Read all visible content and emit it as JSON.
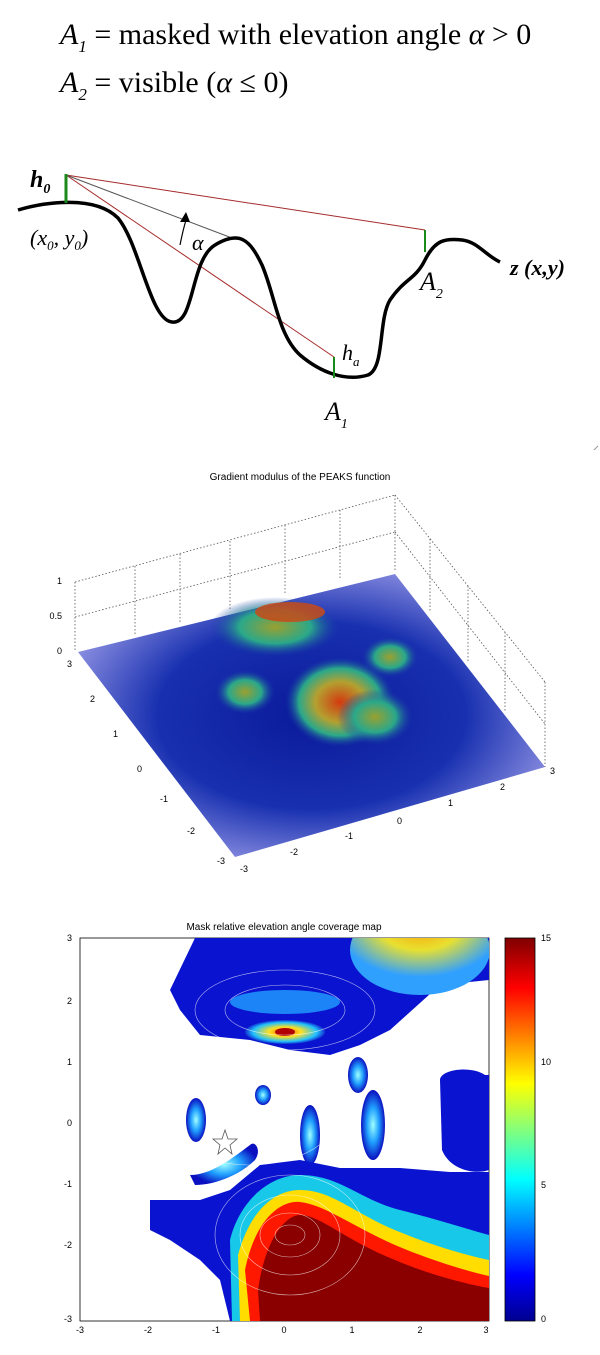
{
  "equations": {
    "line1": {
      "var": "A",
      "sub": "1",
      "text": " = masked with elevation angle ",
      "greek": "α",
      "rel": " > 0"
    },
    "line2": {
      "var": "A",
      "sub": "2",
      "text": " = visible (",
      "greek": "α",
      "rel": " ≤ 0)"
    }
  },
  "diagram": {
    "h0": "h",
    "h0_sub": "0",
    "point_open": "(x",
    "point_sub0": "0",
    "point_mid": ", y",
    "point_sub1": "0",
    "point_close": ")",
    "alpha": "α",
    "a2": "A",
    "a2_sub": "2",
    "ha": "h",
    "ha_sub": "a",
    "a1": "A",
    "a1_sub": "1",
    "surface": "z (x,y)",
    "colors": {
      "terrain": "#000000",
      "ray_red": "#a52a2a",
      "ray_gray": "#555555",
      "height": "#1a8a1a"
    }
  },
  "chart3d": {
    "title": "Gradient modulus of the PEAKS function",
    "z_ticks": [
      "0",
      "0.5",
      "1"
    ],
    "y_ticks": [
      "3",
      "2",
      "1",
      "0",
      "-1",
      "-2",
      "-3"
    ],
    "x_ticks": [
      "-3",
      "-2",
      "-1",
      "0",
      "1",
      "2",
      "3"
    ]
  },
  "chart_data": {
    "type": "heatmap",
    "title": "Mask relative elevation angle coverage map",
    "x_ticks": [
      "-3",
      "-2",
      "-1",
      "0",
      "1",
      "2",
      "3"
    ],
    "y_ticks": [
      "3",
      "2",
      "1",
      "0",
      "-1",
      "-2",
      "-3"
    ],
    "xlim": [
      -3,
      3
    ],
    "ylim": [
      -3,
      3
    ],
    "colorbar": {
      "ticks": [
        "15",
        "10",
        "5",
        "0"
      ],
      "range": [
        0,
        15
      ],
      "colormap": "jet"
    },
    "observer": {
      "x": -0.9,
      "y": -0.25,
      "marker": "star"
    }
  }
}
